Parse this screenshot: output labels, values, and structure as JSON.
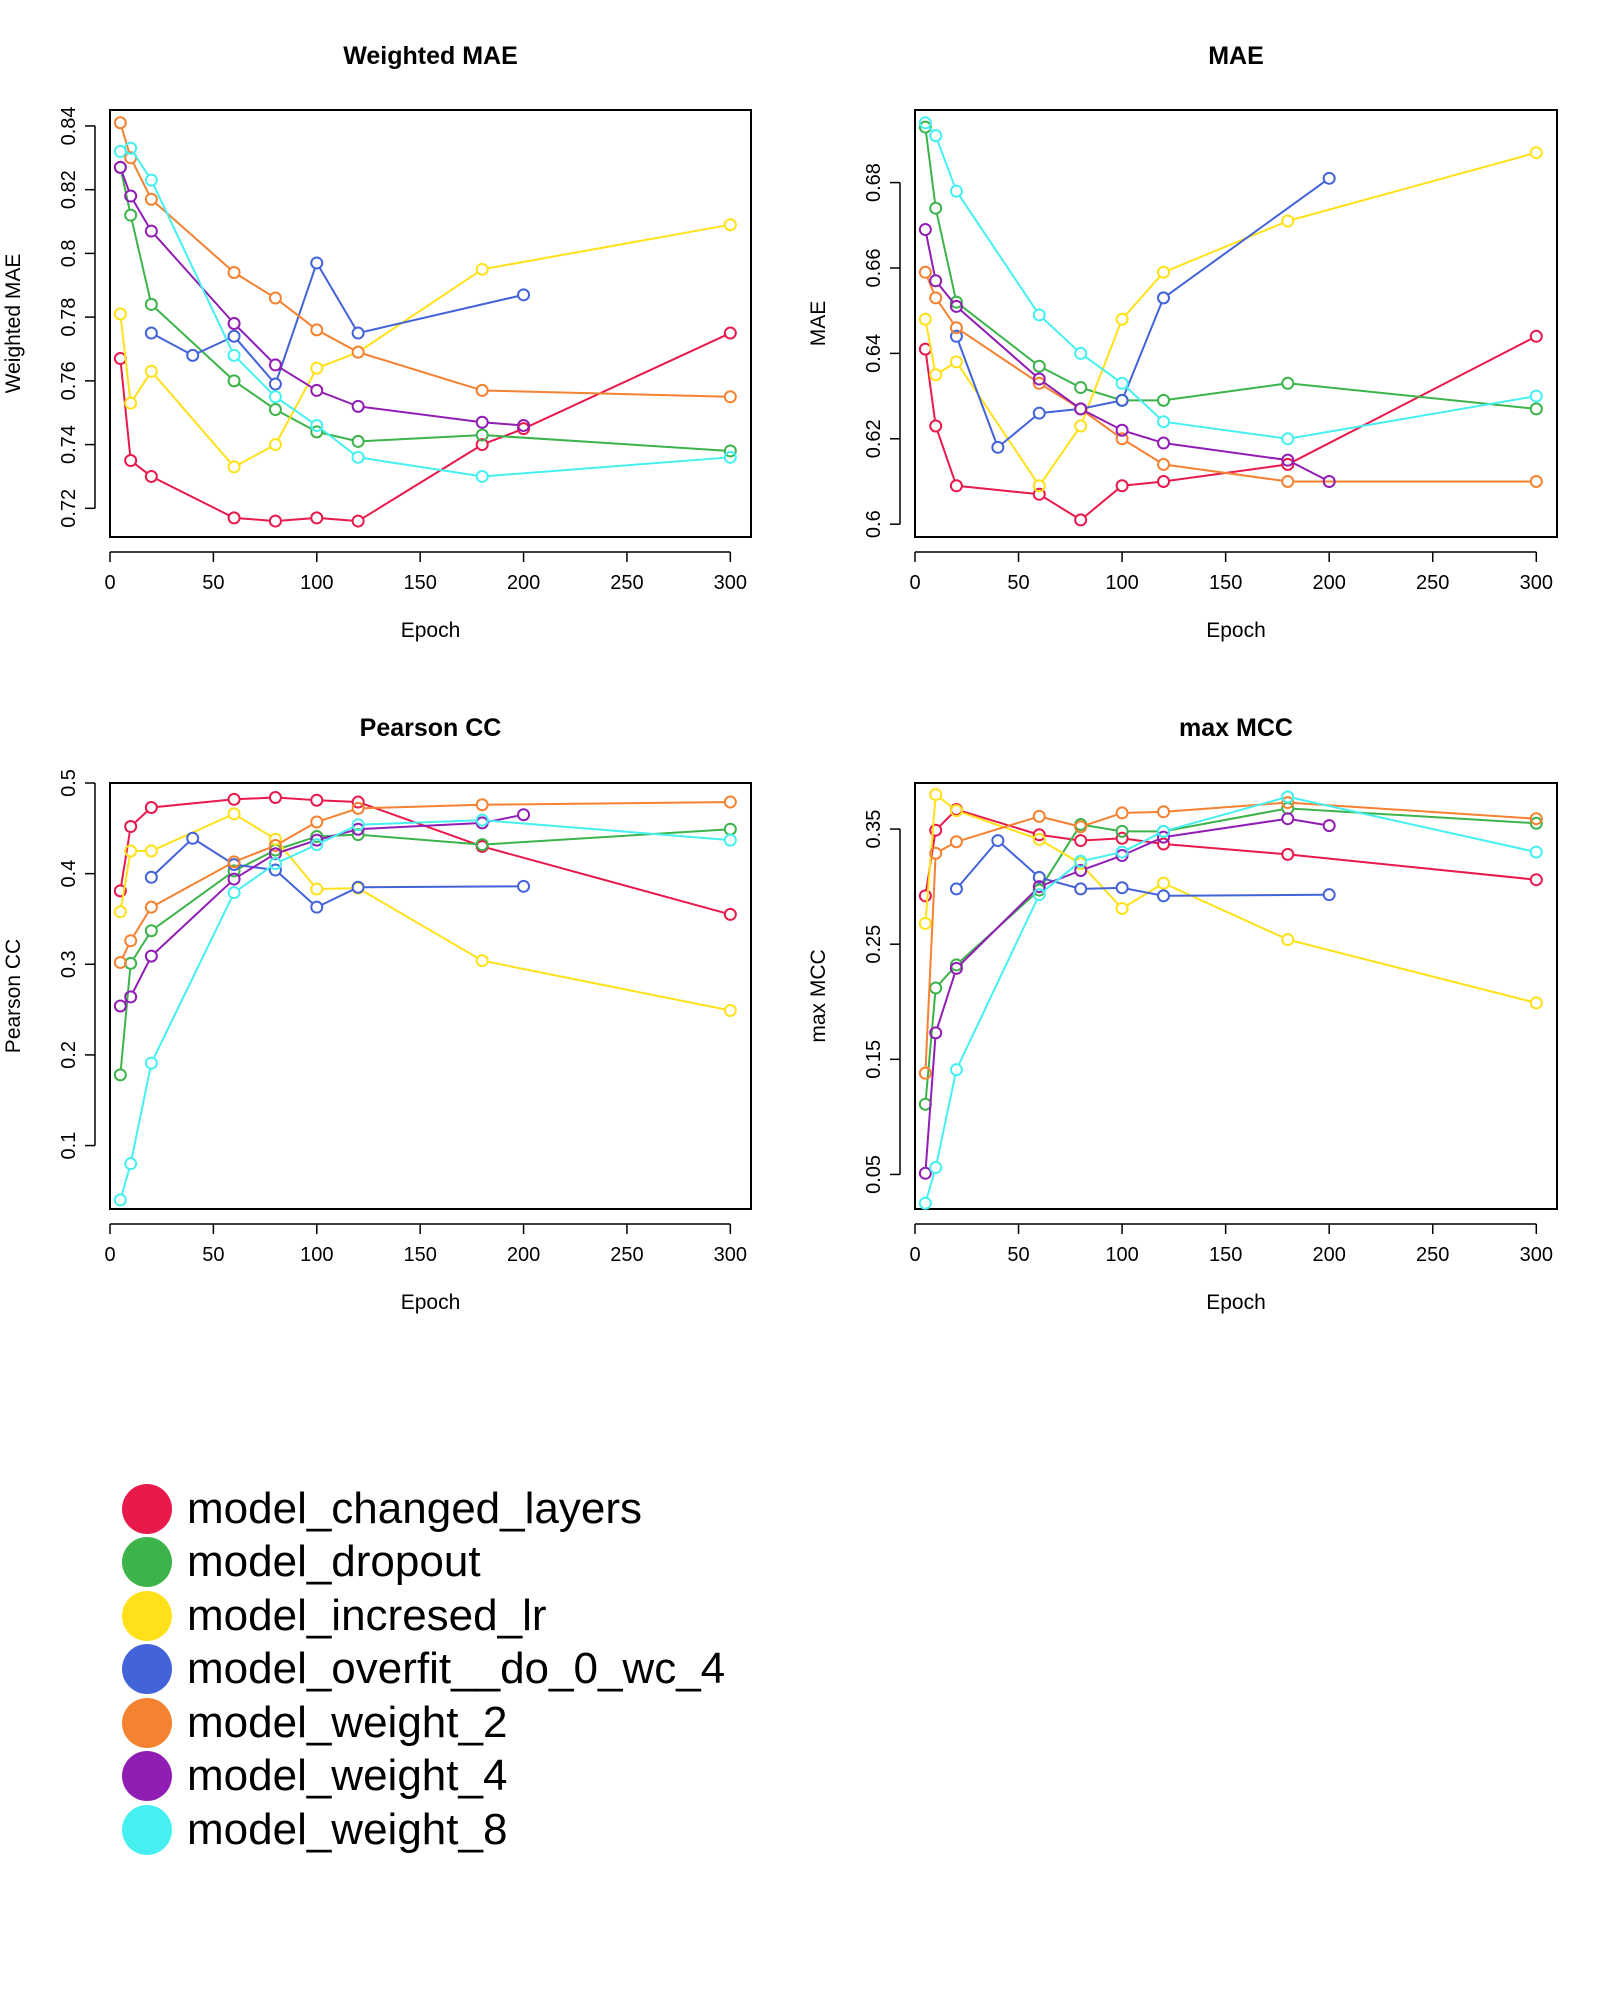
{
  "chart_data": [
    {
      "type": "line",
      "title": "Weighted MAE",
      "xlabel": "Epoch",
      "ylabel": "Weighted MAE",
      "xlim": [
        0,
        310
      ],
      "ylim": [
        0.711,
        0.845
      ],
      "xticks": [
        0,
        50,
        100,
        150,
        200,
        250,
        300
      ],
      "yticks": [
        0.72,
        0.74,
        0.76,
        0.78,
        0.8,
        0.82,
        0.84
      ],
      "series": [
        {
          "name": "model_changed_layers",
          "x": [
            5,
            10,
            20,
            60,
            80,
            100,
            120,
            180,
            200,
            300
          ],
          "values": [
            0.767,
            0.735,
            0.73,
            0.717,
            0.716,
            0.717,
            0.716,
            0.74,
            0.745,
            0.775
          ]
        },
        {
          "name": "model_dropout",
          "x": [
            5,
            10,
            20,
            60,
            80,
            100,
            120,
            180,
            300
          ],
          "values": [
            0.827,
            0.812,
            0.784,
            0.76,
            0.751,
            0.744,
            0.741,
            0.743,
            0.738
          ]
        },
        {
          "name": "model_incresed_lr",
          "x": [
            5,
            10,
            20,
            60,
            80,
            100,
            120,
            180,
            300
          ],
          "values": [
            0.781,
            0.753,
            0.763,
            0.733,
            0.74,
            0.764,
            0.769,
            0.795,
            0.809
          ]
        },
        {
          "name": "model_overfit__do_0_wc_4",
          "x": [
            20,
            40,
            60,
            80,
            100,
            120,
            200
          ],
          "values": [
            0.775,
            0.768,
            0.774,
            0.759,
            0.797,
            0.775,
            0.787
          ]
        },
        {
          "name": "model_weight_2",
          "x": [
            5,
            10,
            20,
            60,
            80,
            100,
            120,
            180,
            300
          ],
          "values": [
            0.841,
            0.83,
            0.817,
            0.794,
            0.786,
            0.776,
            0.769,
            0.757,
            0.755
          ]
        },
        {
          "name": "model_weight_4",
          "x": [
            5,
            10,
            20,
            60,
            80,
            100,
            120,
            180,
            200
          ],
          "values": [
            0.827,
            0.818,
            0.807,
            0.778,
            0.765,
            0.757,
            0.752,
            0.747,
            0.746
          ]
        },
        {
          "name": "model_weight_8",
          "x": [
            5,
            10,
            20,
            60,
            80,
            100,
            120,
            180,
            300
          ],
          "values": [
            0.832,
            0.833,
            0.823,
            0.768,
            0.755,
            0.746,
            0.736,
            0.73,
            0.736
          ]
        }
      ]
    },
    {
      "type": "line",
      "title": "MAE",
      "xlabel": "Epoch",
      "ylabel": "MAE",
      "xlim": [
        0,
        310
      ],
      "ylim": [
        0.597,
        0.697
      ],
      "xticks": [
        0,
        50,
        100,
        150,
        200,
        250,
        300
      ],
      "yticks": [
        0.6,
        0.62,
        0.64,
        0.66,
        0.68
      ],
      "series": [
        {
          "name": "model_changed_layers",
          "x": [
            5,
            10,
            20,
            60,
            80,
            100,
            120,
            180,
            300
          ],
          "values": [
            0.641,
            0.623,
            0.609,
            0.607,
            0.601,
            0.609,
            0.61,
            0.614,
            0.644
          ]
        },
        {
          "name": "model_dropout",
          "x": [
            5,
            10,
            20,
            60,
            80,
            100,
            120,
            180,
            300
          ],
          "values": [
            0.693,
            0.674,
            0.652,
            0.637,
            0.632,
            0.629,
            0.629,
            0.633,
            0.627
          ]
        },
        {
          "name": "model_incresed_lr",
          "x": [
            5,
            10,
            20,
            60,
            80,
            100,
            120,
            180,
            300
          ],
          "values": [
            0.648,
            0.635,
            0.638,
            0.609,
            0.623,
            0.648,
            0.659,
            0.671,
            0.687
          ]
        },
        {
          "name": "model_overfit__do_0_wc_4",
          "x": [
            20,
            40,
            60,
            80,
            100,
            120,
            200
          ],
          "values": [
            0.644,
            0.618,
            0.626,
            0.627,
            0.629,
            0.653,
            0.681
          ]
        },
        {
          "name": "model_weight_2",
          "x": [
            5,
            10,
            20,
            60,
            80,
            100,
            120,
            180,
            300
          ],
          "values": [
            0.659,
            0.653,
            0.646,
            0.633,
            0.627,
            0.62,
            0.614,
            0.61,
            0.61
          ]
        },
        {
          "name": "model_weight_4",
          "x": [
            5,
            10,
            20,
            60,
            80,
            100,
            120,
            180,
            200
          ],
          "values": [
            0.669,
            0.657,
            0.651,
            0.634,
            0.627,
            0.622,
            0.619,
            0.615,
            0.61
          ]
        },
        {
          "name": "model_weight_8",
          "x": [
            5,
            10,
            20,
            60,
            80,
            100,
            120,
            180,
            300
          ],
          "values": [
            0.694,
            0.691,
            0.678,
            0.649,
            0.64,
            0.633,
            0.624,
            0.62,
            0.63
          ]
        }
      ]
    },
    {
      "type": "line",
      "title": "Pearson CC",
      "xlabel": "Epoch",
      "ylabel": "Pearson CC",
      "xlim": [
        0,
        310
      ],
      "ylim": [
        0.03,
        0.5
      ],
      "xticks": [
        0,
        50,
        100,
        150,
        200,
        250,
        300
      ],
      "yticks": [
        0.1,
        0.2,
        0.3,
        0.4,
        0.5
      ],
      "series": [
        {
          "name": "model_changed_layers",
          "x": [
            5,
            10,
            20,
            60,
            80,
            100,
            120,
            180,
            300
          ],
          "values": [
            0.381,
            0.452,
            0.473,
            0.482,
            0.484,
            0.481,
            0.479,
            0.43,
            0.355
          ]
        },
        {
          "name": "model_dropout",
          "x": [
            5,
            10,
            20,
            60,
            80,
            100,
            120,
            180,
            300
          ],
          "values": [
            0.178,
            0.301,
            0.337,
            0.403,
            0.426,
            0.441,
            0.443,
            0.432,
            0.449
          ]
        },
        {
          "name": "model_incresed_lr",
          "x": [
            5,
            10,
            20,
            60,
            80,
            100,
            120,
            180,
            300
          ],
          "values": [
            0.358,
            0.425,
            0.425,
            0.466,
            0.438,
            0.383,
            0.384,
            0.304,
            0.249
          ]
        },
        {
          "name": "model_overfit__do_0_wc_4",
          "x": [
            20,
            40,
            60,
            80,
            100,
            120,
            200
          ],
          "values": [
            0.396,
            0.439,
            0.41,
            0.404,
            0.363,
            0.385,
            0.386
          ]
        },
        {
          "name": "model_weight_2",
          "x": [
            5,
            10,
            20,
            60,
            80,
            100,
            120,
            180,
            300
          ],
          "values": [
            0.302,
            0.326,
            0.363,
            0.413,
            0.431,
            0.457,
            0.472,
            0.476,
            0.479
          ]
        },
        {
          "name": "model_weight_4",
          "x": [
            5,
            10,
            20,
            60,
            80,
            100,
            120,
            180,
            200
          ],
          "values": [
            0.254,
            0.264,
            0.309,
            0.394,
            0.422,
            0.437,
            0.449,
            0.456,
            0.465
          ]
        },
        {
          "name": "model_weight_8",
          "x": [
            5,
            10,
            20,
            60,
            80,
            100,
            120,
            180,
            300
          ],
          "values": [
            0.04,
            0.08,
            0.191,
            0.379,
            0.411,
            0.432,
            0.454,
            0.459,
            0.437
          ]
        }
      ]
    },
    {
      "type": "line",
      "title": "max MCC",
      "xlabel": "Epoch",
      "ylabel": "max MCC",
      "xlim": [
        0,
        310
      ],
      "ylim": [
        0.02,
        0.39
      ],
      "xticks": [
        0,
        50,
        100,
        150,
        200,
        250,
        300
      ],
      "yticks": [
        0.05,
        0.15,
        0.25,
        0.35
      ],
      "series": [
        {
          "name": "model_changed_layers",
          "x": [
            5,
            10,
            20,
            60,
            80,
            100,
            120,
            180,
            300
          ],
          "values": [
            0.292,
            0.349,
            0.367,
            0.345,
            0.34,
            0.342,
            0.337,
            0.328,
            0.306
          ]
        },
        {
          "name": "model_dropout",
          "x": [
            5,
            10,
            20,
            60,
            80,
            100,
            120,
            180,
            300
          ],
          "values": [
            0.111,
            0.212,
            0.232,
            0.297,
            0.354,
            0.348,
            0.348,
            0.368,
            0.355
          ]
        },
        {
          "name": "model_incresed_lr",
          "x": [
            5,
            10,
            20,
            60,
            80,
            100,
            120,
            180,
            300
          ],
          "values": [
            0.268,
            0.38,
            0.366,
            0.341,
            0.32,
            0.281,
            0.303,
            0.254,
            0.199
          ]
        },
        {
          "name": "model_overfit__do_0_wc_4",
          "x": [
            20,
            40,
            60,
            80,
            100,
            120,
            200
          ],
          "values": [
            0.298,
            0.34,
            0.308,
            0.298,
            0.299,
            0.292,
            0.293
          ]
        },
        {
          "name": "model_weight_2",
          "x": [
            5,
            10,
            20,
            60,
            80,
            100,
            120,
            180,
            300
          ],
          "values": [
            0.138,
            0.329,
            0.339,
            0.361,
            0.352,
            0.364,
            0.365,
            0.373,
            0.359
          ]
        },
        {
          "name": "model_weight_4",
          "x": [
            5,
            10,
            20,
            60,
            80,
            100,
            120,
            180,
            200
          ],
          "values": [
            0.051,
            0.173,
            0.229,
            0.3,
            0.314,
            0.327,
            0.343,
            0.359,
            0.353
          ]
        },
        {
          "name": "model_weight_8",
          "x": [
            5,
            10,
            20,
            60,
            80,
            100,
            120,
            180,
            300
          ],
          "values": [
            0.025,
            0.056,
            0.141,
            0.293,
            0.322,
            0.33,
            0.348,
            0.378,
            0.33
          ]
        }
      ]
    }
  ],
  "legend": {
    "items": [
      {
        "label": "model_changed_layers",
        "color": "#e8194b"
      },
      {
        "label": "model_dropout",
        "color": "#3cb44b"
      },
      {
        "label": "model_incresed_lr",
        "color": "#ffe119"
      },
      {
        "label": "model_overfit__do_0_wc_4",
        "color": "#4363d8"
      },
      {
        "label": "model_weight_2",
        "color": "#f58231"
      },
      {
        "label": "model_weight_4",
        "color": "#911eb4"
      },
      {
        "label": "model_weight_8",
        "color": "#46f0f0"
      }
    ]
  }
}
